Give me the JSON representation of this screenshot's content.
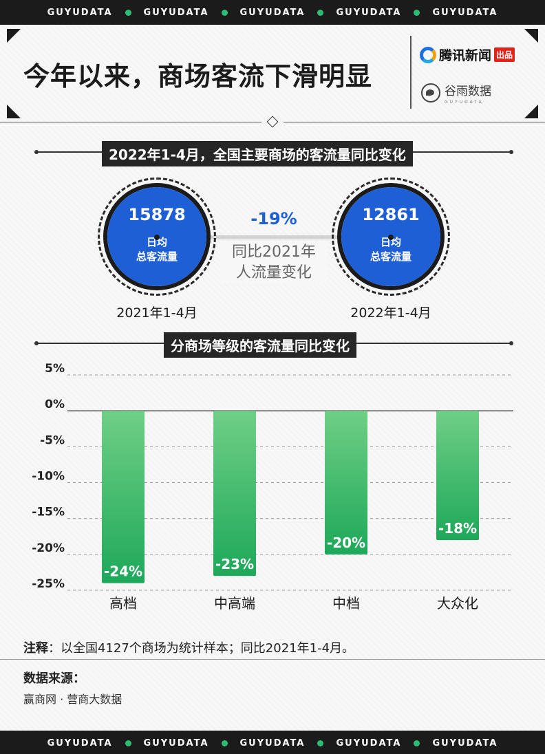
{
  "band": {
    "text": "GUYUDATA",
    "dot_color": "#2bbd74"
  },
  "header": {
    "title": "今年以来，商场客流下滑明显",
    "brand1_name": "腾讯新闻",
    "brand1_tag": "出品",
    "brand2_name": "谷雨数据",
    "brand2_sub": "GUYUDATA"
  },
  "section1": {
    "title": "2022年1-4月，全国主要商场的客流量同比变化",
    "left": {
      "value": "15878",
      "label_line1": "日均",
      "label_line2": "总客流量",
      "period": "2021年1-4月"
    },
    "right": {
      "value": "12861",
      "label_line1": "日均",
      "label_line2": "总客流量",
      "period": "2022年1-4月"
    },
    "change": "-19%",
    "change_desc_line1": "同比2021年",
    "change_desc_line2": "人流量变化"
  },
  "section2": {
    "title": "分商场等级的客流量同比变化"
  },
  "chart_data": {
    "type": "bar",
    "categories": [
      "高档",
      "中高端",
      "中档",
      "大众化"
    ],
    "values": [
      -24,
      -23,
      -20,
      -18
    ],
    "value_labels": [
      "-24%",
      "-23%",
      "-20%",
      "-18%"
    ],
    "yticks": [
      "5%",
      "0%",
      "-5%",
      "-10%",
      "-15%",
      "-20%",
      "-25%"
    ],
    "ytick_values": [
      5,
      0,
      -5,
      -10,
      -15,
      -20,
      -25
    ],
    "ylim": [
      -25,
      5
    ],
    "grid": "dashed",
    "bar_color_top": "#6fcf85",
    "bar_color_bottom": "#1ea85a"
  },
  "note": {
    "label": "注释",
    "text": "：以全国4127个商场为统计样本；同比2021年1-4月。"
  },
  "source": {
    "title": "数据来源：",
    "text": "赢商网 · 营商大数据"
  },
  "colors": {
    "blue": "#1f5fd6",
    "dark": "#1b1b1b"
  }
}
